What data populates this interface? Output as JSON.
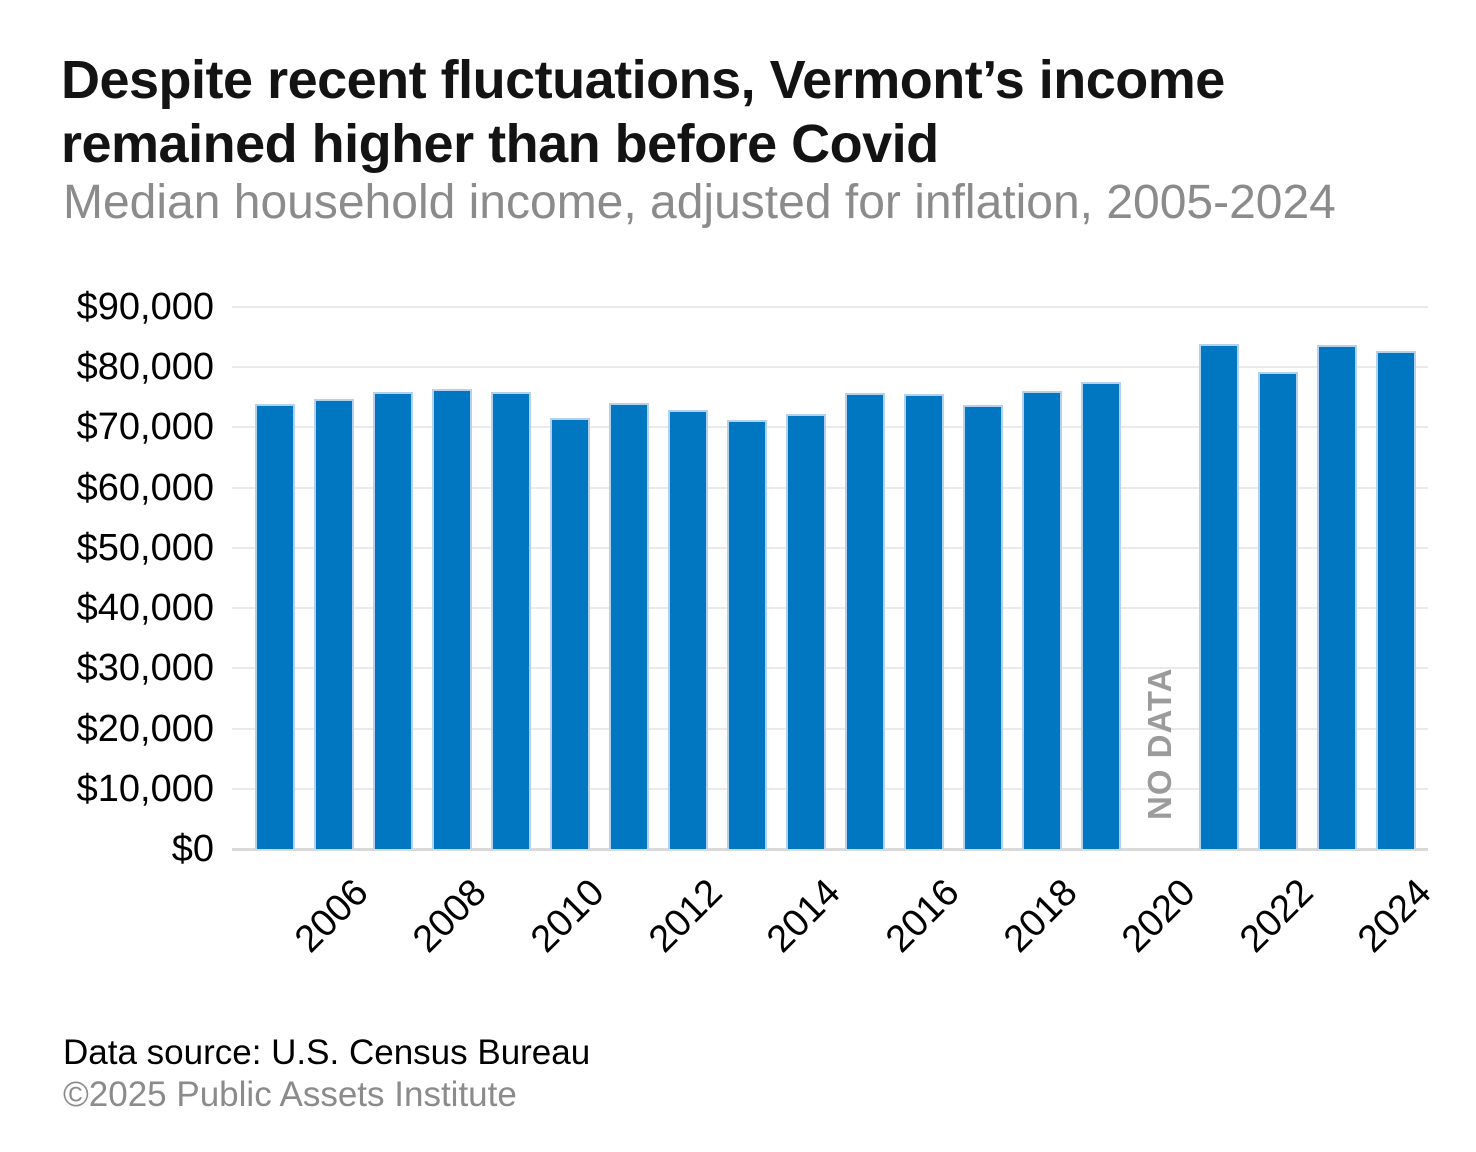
{
  "chart_data": {
    "type": "bar",
    "title": "Despite recent fluctuations, Vermont’s income remained higher than before Covid",
    "subtitle": "Median household income, adjusted for inflation, 2005-2024",
    "xlabel": "",
    "ylabel": "",
    "ylim": [
      0,
      90000
    ],
    "grid": "horizontal",
    "legend": "none",
    "categories": [
      "2005",
      "2006",
      "2007",
      "2008",
      "2009",
      "2010",
      "2011",
      "2012",
      "2013",
      "2014",
      "2015",
      "2016",
      "2017",
      "2018",
      "2019",
      "2020",
      "2021",
      "2022",
      "2023",
      "2024"
    ],
    "values": [
      73900,
      74700,
      75900,
      76400,
      75900,
      71500,
      74100,
      72900,
      71300,
      72200,
      75700,
      75500,
      73800,
      76100,
      77500,
      null,
      83900,
      79200,
      83700,
      82700
    ],
    "no_data_label": "NO DATA",
    "no_data_year": "2020",
    "y_ticks": [
      {
        "value": 0,
        "label": "$0"
      },
      {
        "value": 10000,
        "label": "$10,000"
      },
      {
        "value": 20000,
        "label": "$20,000"
      },
      {
        "value": 30000,
        "label": "$30,000"
      },
      {
        "value": 40000,
        "label": "$40,000"
      },
      {
        "value": 50000,
        "label": "$50,000"
      },
      {
        "value": 60000,
        "label": "$60,000"
      },
      {
        "value": 70000,
        "label": "$70,000"
      },
      {
        "value": 80000,
        "label": "$80,000"
      },
      {
        "value": 90000,
        "label": "$90,000"
      }
    ],
    "x_tick_years": [
      "2006",
      "2008",
      "2010",
      "2012",
      "2014",
      "2016",
      "2018",
      "2020",
      "2022",
      "2024"
    ],
    "colors": {
      "bar_fill": "#0077c0",
      "bar_edge": "#b3d1ea",
      "gridline": "#eaeaea",
      "axis_line": "#d9d9d9",
      "no_data_text": "#9b9b9b",
      "title_text": "#131313",
      "subtitle_text": "#8b8b8b",
      "tick_text": "#000000"
    }
  },
  "footer": {
    "source": "Data source: U.S. Census Bureau",
    "copyright": "©2025 Public Assets Institute"
  }
}
